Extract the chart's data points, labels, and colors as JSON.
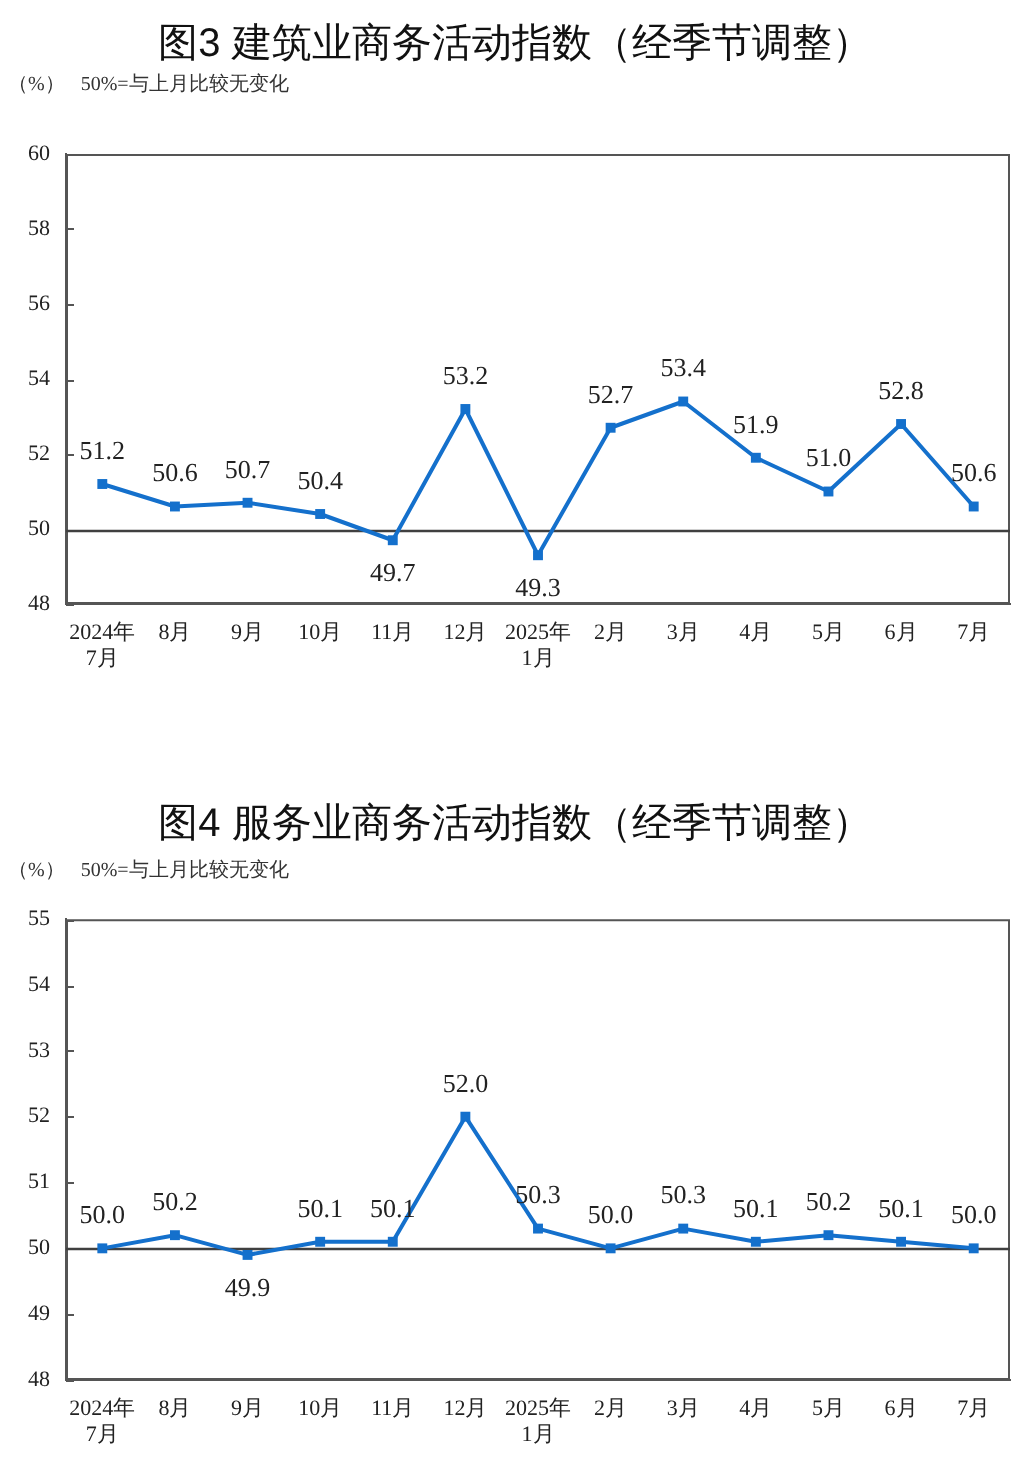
{
  "chart_data": [
    {
      "type": "line",
      "title": "图3 建筑业商务活动指数（经季节调整）",
      "ylabel": "（%）",
      "annotations": [
        "50%=与上月比较无变化"
      ],
      "categories": [
        "2024年\n7月",
        "8月",
        "9月",
        "10月",
        "11月",
        "12月",
        "2025年\n1月",
        "2月",
        "3月",
        "4月",
        "5月",
        "6月",
        "7月"
      ],
      "series": [
        {
          "color": "#1470cc",
          "values": [
            51.2,
            50.6,
            50.7,
            50.4,
            49.7,
            53.2,
            49.3,
            52.7,
            53.4,
            51.9,
            51.0,
            52.8,
            50.6
          ],
          "value_labels": [
            "51.2",
            "50.6",
            "50.7",
            "50.4",
            "49.7",
            "53.2",
            "49.3",
            "52.7",
            "53.4",
            "51.9",
            "51.0",
            "52.8",
            "50.6"
          ]
        }
      ],
      "ylim": [
        48,
        60
      ],
      "yticks": [
        48,
        50,
        52,
        54,
        56,
        58,
        60
      ],
      "ref_lines": [
        {
          "axis": "y",
          "value": 50,
          "color": "#404040"
        }
      ],
      "marker": "square",
      "line_style": "solid"
    },
    {
      "type": "line",
      "title": "图4 服务业商务活动指数（经季节调整）",
      "ylabel": "（%）",
      "annotations": [
        "50%=与上月比较无变化"
      ],
      "categories": [
        "2024年\n7月",
        "8月",
        "9月",
        "10月",
        "11月",
        "12月",
        "2025年\n1月",
        "2月",
        "3月",
        "4月",
        "5月",
        "6月",
        "7月"
      ],
      "series": [
        {
          "color": "#1470cc",
          "values": [
            50.0,
            50.2,
            49.9,
            50.1,
            50.1,
            52.0,
            50.3,
            50.0,
            50.3,
            50.1,
            50.2,
            50.1,
            50.0
          ],
          "value_labels": [
            "50.0",
            "50.2",
            "49.9",
            "50.1",
            "50.1",
            "52.0",
            "50.3",
            "50.0",
            "50.3",
            "50.1",
            "50.2",
            "50.1",
            "50.0"
          ]
        }
      ],
      "ylim": [
        48,
        55
      ],
      "yticks": [
        48,
        49,
        50,
        51,
        52,
        53,
        54,
        55
      ],
      "ref_lines": [
        {
          "axis": "y",
          "value": 50,
          "color": "#404040"
        }
      ],
      "marker": "square",
      "line_style": "solid"
    }
  ]
}
